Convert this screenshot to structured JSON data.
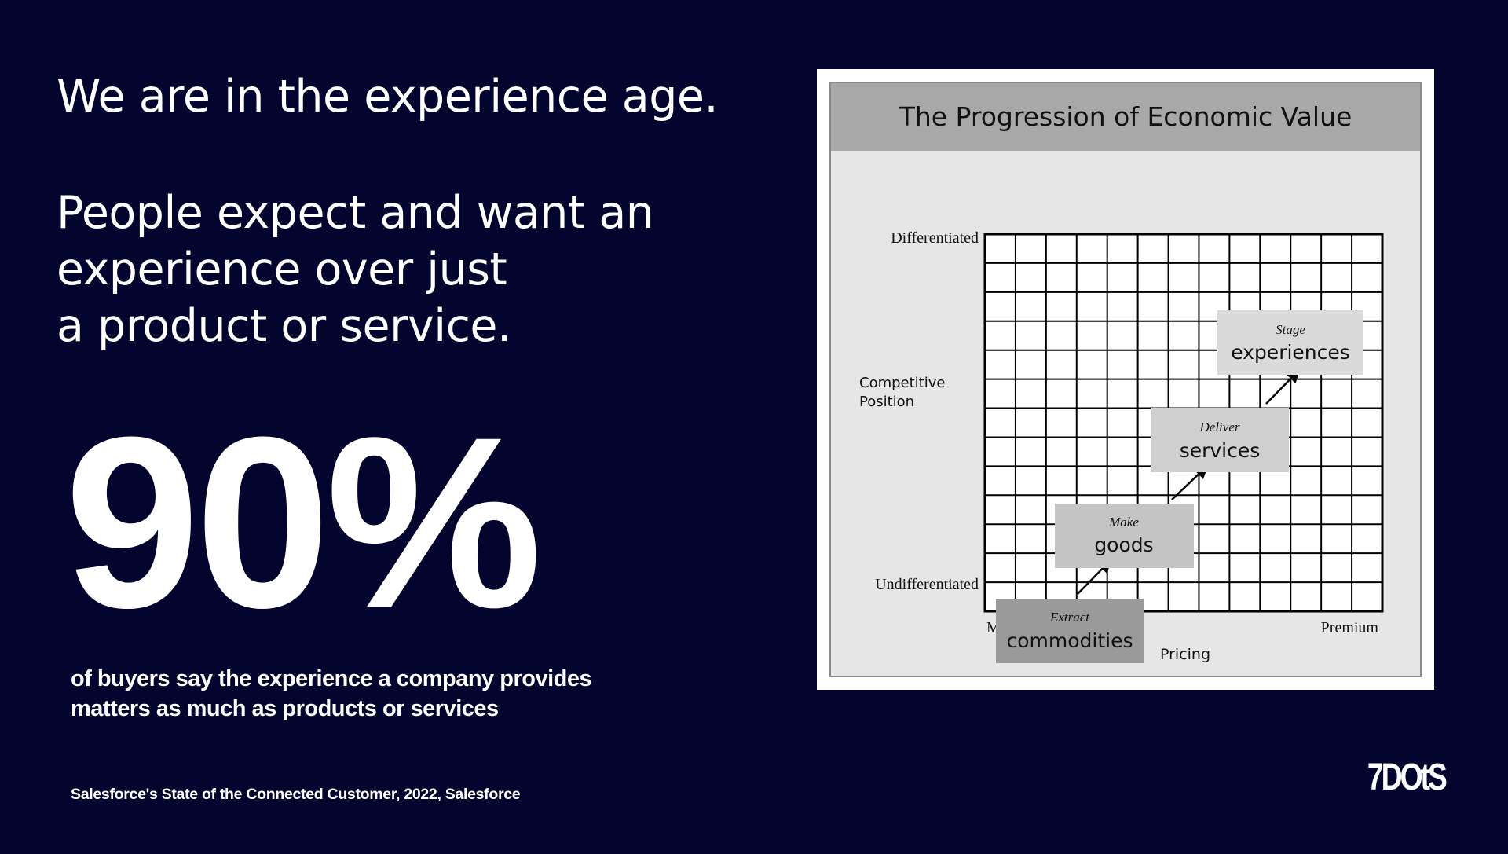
{
  "slide": {
    "headline": "We are in the experience age.",
    "subhead_lines": [
      "People expect and want an",
      "experience over just",
      "a product or service."
    ],
    "stat": "90%",
    "caption_lines": [
      "of buyers say the experience a company provides",
      "matters as much as products or services"
    ],
    "source": "Salesforce's State of the Connected Customer, 2022, Salesforce",
    "logo": "7DOtS"
  },
  "figure": {
    "title": "The Progression of Economic Value",
    "y_axis": {
      "label_lines": [
        "Competitive",
        "Position"
      ],
      "top_label": "Differentiated",
      "bottom_label": "Undifferentiated"
    },
    "x_axis": {
      "label": "Pricing",
      "left_label": "Market",
      "right_label": "Premium"
    },
    "stages": [
      {
        "verb": "Extract",
        "noun": "commodities",
        "fill": "#9a9a9a"
      },
      {
        "verb": "Make",
        "noun": "goods",
        "fill": "#c4c4c4"
      },
      {
        "verb": "Deliver",
        "noun": "services",
        "fill": "#cfcfcf"
      },
      {
        "verb": "Stage",
        "noun": "experiences",
        "fill": "#dadada"
      }
    ]
  }
}
